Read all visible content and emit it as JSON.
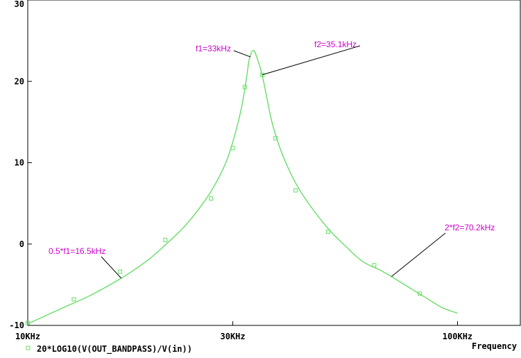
{
  "chart_data": {
    "type": "line",
    "x_scale": "log",
    "xlim_hz": [
      10000,
      140000
    ],
    "ylim": [
      -10,
      30
    ],
    "x_ticks": [
      {
        "value": 10000,
        "label": "10KHz"
      },
      {
        "value": 30000,
        "label": "30KHz"
      },
      {
        "value": 100000,
        "label": "100KHz"
      }
    ],
    "y_ticks": [
      {
        "value": -10,
        "label": "-10"
      },
      {
        "value": 0,
        "label": "0"
      },
      {
        "value": 10,
        "label": "10"
      },
      {
        "value": 20,
        "label": "20"
      },
      {
        "value": 30,
        "label": "30"
      }
    ],
    "xlabel": "Frequency",
    "grid": false,
    "colors": {
      "trace": "#66dd66",
      "annotation": "#cc00cc",
      "axes": "#000000"
    },
    "series": [
      {
        "name": "20*LOG10(V(OUT_BANDPASS)/V(in))",
        "x": [
          10000,
          12000,
          14000,
          16500,
          19000,
          21000,
          23000,
          25000,
          27000,
          29000,
          30500,
          31500,
          32300,
          32800,
          33500,
          34200,
          35100,
          36000,
          37000,
          38500,
          40000,
          42000,
          45000,
          50000,
          55000,
          60000,
          66000,
          70200,
          78000,
          85000,
          92000,
          100000
        ],
        "y": [
          -9.8,
          -7.9,
          -6.3,
          -4.2,
          -2.0,
          0.0,
          2.0,
          4.3,
          6.9,
          10.2,
          13.9,
          17.0,
          20.5,
          22.8,
          23.8,
          22.8,
          20.8,
          18.0,
          15.0,
          12.0,
          9.8,
          7.5,
          5.0,
          1.9,
          -0.3,
          -2.1,
          -3.2,
          -4.0,
          -5.5,
          -6.7,
          -7.8,
          -8.5
        ]
      }
    ],
    "markers": [
      {
        "x": 10000,
        "y": -9.7
      },
      {
        "x": 12800,
        "y": -6.8
      },
      {
        "x": 16400,
        "y": -3.4
      },
      {
        "x": 20900,
        "y": 0.5
      },
      {
        "x": 26700,
        "y": 5.6
      },
      {
        "x": 30000,
        "y": 11.8
      },
      {
        "x": 32000,
        "y": 19.3
      },
      {
        "x": 35100,
        "y": 20.8
      },
      {
        "x": 37700,
        "y": 13.0
      },
      {
        "x": 42000,
        "y": 6.6
      },
      {
        "x": 50000,
        "y": 1.5
      },
      {
        "x": 64000,
        "y": -2.6
      },
      {
        "x": 81700,
        "y": -6.1
      }
    ],
    "annotations": [
      {
        "text": "f1=33kHz",
        "point": {
          "x": 33000,
          "y": 23.0
        }
      },
      {
        "text": "f2=35.1kHz",
        "point": {
          "x": 35100,
          "y": 20.8
        }
      },
      {
        "text": "0.5*f1=16.5kHz",
        "point": {
          "x": 16500,
          "y": -4.2
        }
      },
      {
        "text": "2*f2=70.2kHz",
        "point": {
          "x": 70200,
          "y": -4.0
        }
      }
    ]
  }
}
